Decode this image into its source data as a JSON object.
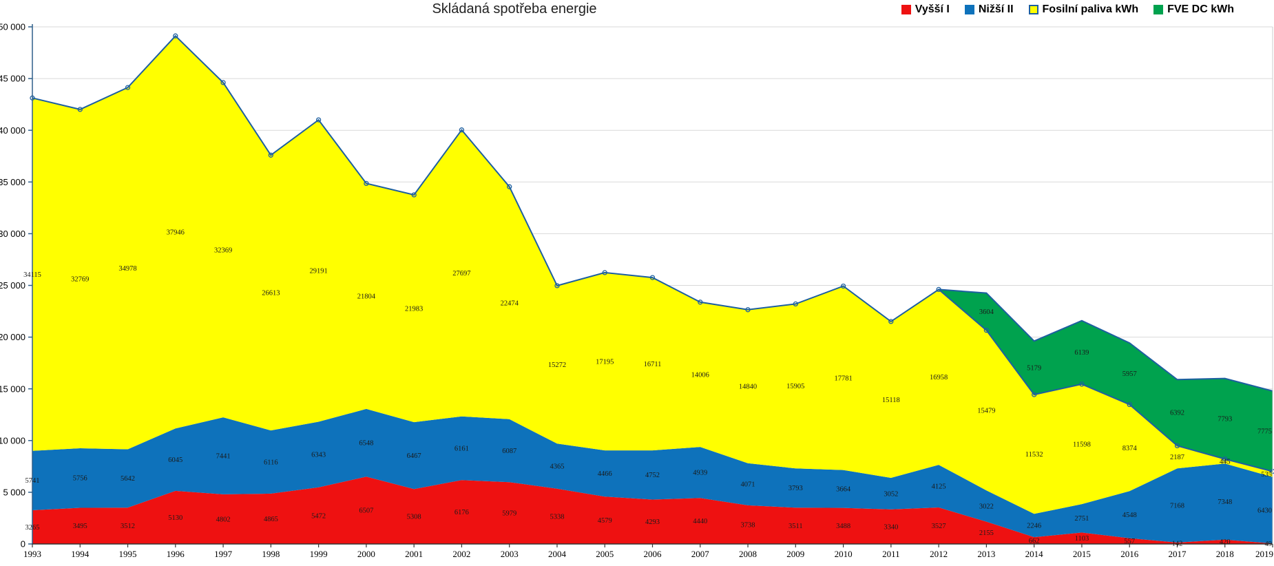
{
  "title": "Skládaná spotřeba energie",
  "legend": {
    "items": [
      {
        "label": "Vyšší I",
        "color": "#ee1111"
      },
      {
        "label": "Nižší II",
        "color": "#0e72bb"
      },
      {
        "label": "Fosilní paliva kWh",
        "color": "#ffff00",
        "border": "#1d5fa0"
      },
      {
        "label": "FVE DC kWh",
        "color": "#00a24e"
      }
    ]
  },
  "chart_data": {
    "type": "area",
    "stacked": true,
    "title": "Skládaná spotřeba energie",
    "x": [
      1993,
      1994,
      1995,
      1996,
      1997,
      1998,
      1999,
      2000,
      2001,
      2002,
      2003,
      2004,
      2005,
      2006,
      2007,
      2008,
      2009,
      2010,
      2011,
      2012,
      2013,
      2014,
      2015,
      2016,
      2017,
      2018,
      2019
    ],
    "series": [
      {
        "name": "Vyšší I",
        "color": "#ee1111",
        "values": [
          3265,
          3495,
          3512,
          5130,
          4802,
          4865,
          5472,
          6507,
          5308,
          6176,
          5979,
          5338,
          4579,
          4293,
          4440,
          3738,
          3511,
          3488,
          3340,
          3527,
          2155,
          662,
          1103,
          557,
          142,
          420,
          49
        ]
      },
      {
        "name": "Nižší II",
        "color": "#0e72bb",
        "values": [
          5741,
          5756,
          5642,
          6045,
          7441,
          6116,
          6343,
          6548,
          6467,
          6161,
          6087,
          4365,
          4466,
          4752,
          4939,
          4071,
          3793,
          3664,
          3052,
          4125,
          3022,
          2246,
          2751,
          4548,
          7168,
          7348,
          6430
        ]
      },
      {
        "name": "Fosilní paliva kWh",
        "color": "#ffff00",
        "values": [
          34115,
          32769,
          34978,
          37946,
          32369,
          26613,
          29191,
          21804,
          21983,
          27697,
          22474,
          15272,
          17195,
          16711,
          14006,
          14840,
          15905,
          17781,
          15118,
          16958,
          15479,
          11532,
          11598,
          8374,
          2187,
          445,
          535
        ]
      },
      {
        "name": "FVE DC kWh",
        "color": "#00a24e",
        "values": [
          0,
          0,
          0,
          0,
          0,
          0,
          0,
          0,
          0,
          0,
          0,
          0,
          0,
          0,
          0,
          0,
          0,
          0,
          0,
          0,
          3604,
          5179,
          6139,
          5957,
          6392,
          7793,
          7775
        ]
      }
    ],
    "ylim": [
      0,
      50000
    ],
    "ytick_step": 5000,
    "ytick_labels": [
      "0",
      "5 000",
      "10 000",
      "15 000",
      "20 000",
      "25 000",
      "30 000",
      "35 000",
      "40 000",
      "45 000",
      "50 000"
    ],
    "xlabel": "",
    "ylabel": "",
    "grid": true,
    "legend_position": "top-right",
    "outline_color": "#1d5fa0",
    "data_labels": true
  }
}
